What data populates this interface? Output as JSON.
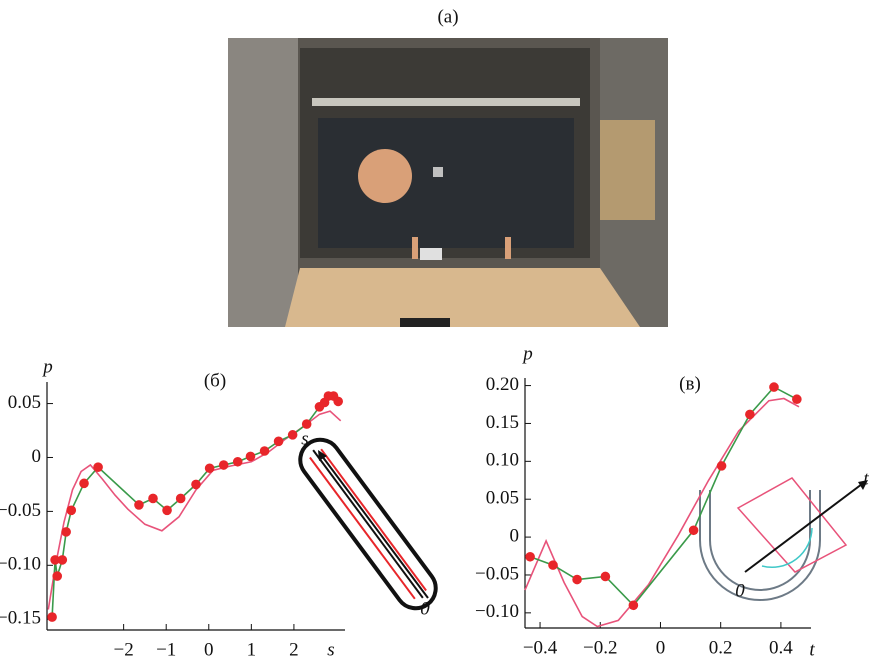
{
  "photo_label": "(a)",
  "chart_data": [
    {
      "type": "line",
      "panel_label": "(б)",
      "ylabel": "p",
      "xlabel": "s",
      "xlim": [
        -3.8,
        3.2
      ],
      "ylim": [
        -0.16,
        0.07
      ],
      "xticks": [
        {
          "value": -2,
          "label": "−2"
        },
        {
          "value": -1,
          "label": "−1"
        },
        0,
        1,
        2
      ],
      "yticks": [
        0.05,
        0,
        {
          "value": -0.05,
          "label": "−0.05"
        },
        {
          "value": -0.1,
          "label": "−0.10"
        },
        {
          "value": -0.15,
          "label": "−0.15"
        }
      ],
      "annotations": [
        "s",
        "0"
      ],
      "series": [
        {
          "color": "#e8537a",
          "x": [
            -3.77,
            -3.6,
            -3.4,
            -3.2,
            -3.0,
            -2.78,
            -2.5,
            -2.2,
            -1.9,
            -1.5,
            -1.1,
            -0.7,
            -0.3,
            0.1,
            0.5,
            1.0,
            1.4,
            1.8,
            2.2,
            2.6,
            2.85,
            3.1
          ],
          "values": [
            -0.141,
            -0.1,
            -0.06,
            -0.03,
            -0.013,
            -0.007,
            -0.02,
            -0.035,
            -0.048,
            -0.062,
            -0.068,
            -0.055,
            -0.03,
            -0.012,
            -0.008,
            -0.004,
            0.005,
            0.017,
            0.028,
            0.04,
            0.043,
            0.034
          ]
        },
        {
          "color": "#3a9a4a",
          "marker_color": "#e8262a",
          "x": [
            -3.68,
            -3.61,
            -3.56,
            -3.44,
            -3.35,
            -3.23,
            -2.93,
            -2.6,
            -1.64,
            -1.31,
            -0.98,
            -0.66,
            -0.3,
            0.02,
            0.35,
            0.68,
            0.98,
            1.31,
            1.64,
            1.97,
            2.3,
            2.6,
            2.72,
            2.81,
            2.93,
            3.04
          ],
          "values": [
            -0.148,
            -0.095,
            -0.11,
            -0.095,
            -0.069,
            -0.049,
            -0.024,
            -0.009,
            -0.044,
            -0.038,
            -0.049,
            -0.038,
            -0.025,
            -0.01,
            -0.007,
            -0.004,
            0.001,
            0.006,
            0.015,
            0.021,
            0.031,
            0.047,
            0.051,
            0.057,
            0.057,
            0.052
          ]
        }
      ]
    },
    {
      "type": "line",
      "panel_label": "(в)",
      "ylabel": "p",
      "xlabel": "t",
      "xlim": [
        -0.45,
        0.5
      ],
      "ylim": [
        -0.12,
        0.21
      ],
      "xticks": [
        {
          "value": -0.4,
          "label": "−0.4"
        },
        {
          "value": -0.2,
          "label": "−0.2"
        },
        0,
        0.2,
        0.4
      ],
      "yticks": [
        {
          "value": 0.2,
          "label": "0.20"
        },
        0.15,
        {
          "value": 0.1,
          "label": "0.10"
        },
        0.05,
        0,
        {
          "value": -0.05,
          "label": "−0.05"
        },
        {
          "value": -0.1,
          "label": "−0.10"
        }
      ],
      "annotations": [
        "0",
        "t"
      ],
      "series": [
        {
          "color": "#e8537a",
          "x": [
            -0.45,
            -0.38,
            -0.32,
            -0.26,
            -0.21,
            -0.14,
            -0.04,
            0.06,
            0.16,
            0.26,
            0.36,
            0.41,
            0.46
          ],
          "values": [
            -0.07,
            -0.005,
            -0.06,
            -0.105,
            -0.118,
            -0.11,
            -0.063,
            0.003,
            0.075,
            0.14,
            0.18,
            0.183,
            0.172
          ]
        },
        {
          "color": "#3a9a4a",
          "marker_color": "#e8262a",
          "x": [
            -0.433,
            -0.357,
            -0.277,
            -0.183,
            -0.09,
            0.11,
            0.203,
            0.297,
            0.377,
            0.453
          ],
          "values": [
            -0.026,
            -0.037,
            -0.056,
            -0.052,
            -0.09,
            0.009,
            0.094,
            0.162,
            0.198,
            0.182
          ]
        }
      ]
    }
  ]
}
